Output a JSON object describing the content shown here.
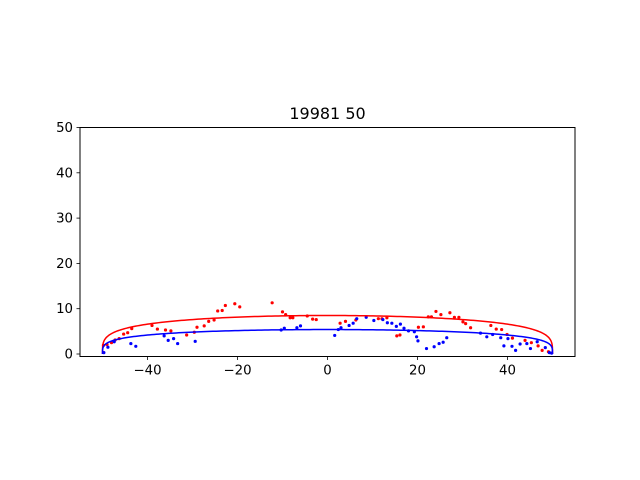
{
  "chart_data": {
    "type": "scatter",
    "title": "19981 50",
    "xlabel": "",
    "ylabel": "",
    "xlim": [
      -55,
      55
    ],
    "ylim": [
      0,
      50
    ],
    "x_ticks": [
      -40,
      -20,
      0,
      20,
      40
    ],
    "y_ticks": [
      0,
      10,
      20,
      30,
      40,
      50
    ],
    "grid": false,
    "legend": "none",
    "series": [
      {
        "color": "#ff0000",
        "kind": "points",
        "points": [
          [
            -49.8,
            1.9
          ],
          [
            -49.0,
            2.1
          ],
          [
            -48.0,
            2.5
          ],
          [
            -47.2,
            3.1
          ],
          [
            -46.3,
            3.4
          ],
          [
            -45.3,
            4.4
          ],
          [
            -44.4,
            4.7
          ],
          [
            -43.5,
            5.6
          ],
          [
            -39.0,
            6.3
          ],
          [
            -37.8,
            5.5
          ],
          [
            -36.0,
            5.3
          ],
          [
            -34.8,
            5.1
          ],
          [
            -31.3,
            4.2
          ],
          [
            -29.6,
            4.8
          ],
          [
            -29.0,
            5.9
          ],
          [
            -27.4,
            6.2
          ],
          [
            -26.4,
            7.2
          ],
          [
            -25.2,
            7.5
          ],
          [
            -24.4,
            9.5
          ],
          [
            -23.4,
            9.6
          ],
          [
            -22.7,
            10.7
          ],
          [
            -20.6,
            11.1
          ],
          [
            -19.5,
            10.4
          ],
          [
            -12.3,
            11.3
          ],
          [
            -10.0,
            9.3
          ],
          [
            -9.3,
            8.7
          ],
          [
            -8.3,
            8.0
          ],
          [
            -7.7,
            8.0
          ],
          [
            -4.5,
            8.4
          ],
          [
            -3.3,
            7.7
          ],
          [
            -2.5,
            7.6
          ],
          [
            2.8,
            6.8
          ],
          [
            4.0,
            7.2
          ],
          [
            6.3,
            7.5
          ],
          [
            11.3,
            7.8
          ],
          [
            12.1,
            7.8
          ],
          [
            13.2,
            8.0
          ],
          [
            15.4,
            4.0
          ],
          [
            16.1,
            4.2
          ],
          [
            20.2,
            5.9
          ],
          [
            21.3,
            6.0
          ],
          [
            22.4,
            8.2
          ],
          [
            23.1,
            8.2
          ],
          [
            24.1,
            9.4
          ],
          [
            25.2,
            8.7
          ],
          [
            27.2,
            9.1
          ],
          [
            28.2,
            8.1
          ],
          [
            29.2,
            8.1
          ],
          [
            30.1,
            7.1
          ],
          [
            30.7,
            6.7
          ],
          [
            31.8,
            5.8
          ],
          [
            36.3,
            6.3
          ],
          [
            37.5,
            5.5
          ],
          [
            38.7,
            5.4
          ],
          [
            39.9,
            4.3
          ],
          [
            41.1,
            3.5
          ],
          [
            43.9,
            3.0
          ],
          [
            45.3,
            2.5
          ],
          [
            46.8,
            1.8
          ],
          [
            47.7,
            0.8
          ],
          [
            49.1,
            0.5
          ]
        ]
      },
      {
        "color": "#0000ff",
        "kind": "points",
        "points": [
          [
            -49.7,
            0.3
          ],
          [
            -48.8,
            1.5
          ],
          [
            -47.4,
            2.7
          ],
          [
            -43.7,
            2.3
          ],
          [
            -42.6,
            1.7
          ],
          [
            -36.3,
            4.0
          ],
          [
            -35.4,
            3.0
          ],
          [
            -34.2,
            3.4
          ],
          [
            -33.3,
            2.3
          ],
          [
            -29.4,
            2.8
          ],
          [
            -10.3,
            5.3
          ],
          [
            -9.6,
            5.7
          ],
          [
            -6.8,
            5.8
          ],
          [
            -6.0,
            6.2
          ],
          [
            1.6,
            4.1
          ],
          [
            2.4,
            5.4
          ],
          [
            3.0,
            5.8
          ],
          [
            4.8,
            6.3
          ],
          [
            5.7,
            6.8
          ],
          [
            6.5,
            7.8
          ],
          [
            8.6,
            8.1
          ],
          [
            10.3,
            7.4
          ],
          [
            12.3,
            7.6
          ],
          [
            13.3,
            6.9
          ],
          [
            14.3,
            6.8
          ],
          [
            15.3,
            6.1
          ],
          [
            16.2,
            6.6
          ],
          [
            17.0,
            5.7
          ],
          [
            18.0,
            5.1
          ],
          [
            19.3,
            4.9
          ],
          [
            19.8,
            3.8
          ],
          [
            20.1,
            2.9
          ],
          [
            22.0,
            1.2
          ],
          [
            23.7,
            1.6
          ],
          [
            24.8,
            2.3
          ],
          [
            25.7,
            2.6
          ],
          [
            26.5,
            3.6
          ],
          [
            34.0,
            4.6
          ],
          [
            35.4,
            3.8
          ],
          [
            36.7,
            4.3
          ],
          [
            38.5,
            3.6
          ],
          [
            39.2,
            1.8
          ],
          [
            40.1,
            3.4
          ],
          [
            41.0,
            1.7
          ],
          [
            41.8,
            0.8
          ],
          [
            42.8,
            2.2
          ],
          [
            44.3,
            2.3
          ],
          [
            45.1,
            1.2
          ],
          [
            46.6,
            2.7
          ],
          [
            48.4,
            1.4
          ],
          [
            49.3,
            0.3
          ],
          [
            49.8,
            0.2
          ]
        ]
      },
      {
        "color": "#ff0000",
        "kind": "curve",
        "center": 0,
        "half_width": 50,
        "peak": 8.5
      },
      {
        "color": "#0000ff",
        "kind": "curve",
        "center": 0,
        "half_width": 50,
        "peak": 5.4
      }
    ]
  }
}
